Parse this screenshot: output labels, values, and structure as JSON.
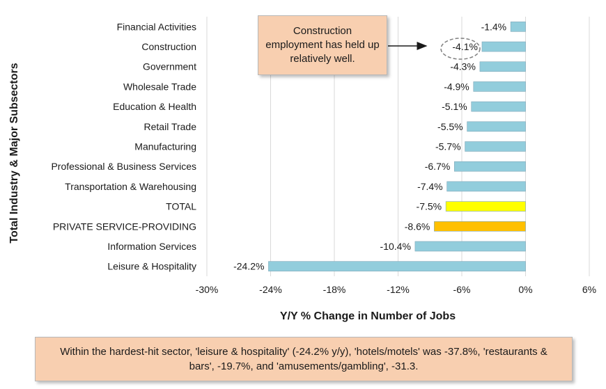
{
  "chart_data": {
    "type": "bar",
    "orientation": "horizontal",
    "categories": [
      "Financial Activities",
      "Construction",
      "Government",
      "Wholesale Trade",
      "Education & Health",
      "Retail Trade",
      "Manufacturing",
      "Professional & Business Services",
      "Transportation & Warehousing",
      "TOTAL",
      "PRIVATE SERVICE-PROVIDING",
      "Information Services",
      "Leisure & Hospitality"
    ],
    "values": [
      -1.4,
      -4.1,
      -4.3,
      -4.9,
      -5.1,
      -5.5,
      -5.7,
      -6.7,
      -7.4,
      -7.5,
      -8.6,
      -10.4,
      -24.2
    ],
    "value_labels": [
      "-1.4%",
      "-4.1%",
      "-4.3%",
      "-4.9%",
      "-5.1%",
      "-5.5%",
      "-5.7%",
      "-6.7%",
      "-7.4%",
      "-7.5%",
      "-8.6%",
      "-10.4%",
      "-24.2%"
    ],
    "bar_colors": [
      "#92cddc",
      "#92cddc",
      "#92cddc",
      "#92cddc",
      "#92cddc",
      "#92cddc",
      "#92cddc",
      "#92cddc",
      "#92cddc",
      "#ffff00",
      "#ffc000",
      "#92cddc",
      "#92cddc"
    ],
    "xticks": [
      -30,
      -24,
      -18,
      -12,
      -6,
      0,
      6
    ],
    "xtick_labels": [
      "-30%",
      "-24%",
      "-18%",
      "-12%",
      "-6%",
      "0%",
      "6%"
    ],
    "xlim": [
      -30,
      6
    ],
    "xlabel": "Y/Y % Change in Number of Jobs",
    "ylabel": "Total Industry & Major Subsectors",
    "grid": "vertical",
    "highlighted_category": "Construction",
    "annotation": "Construction employment has held up relatively well."
  },
  "footnote": "Within the hardest-hit sector, 'leisure & hospitality' (-24.2% y/y), 'hotels/motels' was -37.8%, 'restaurants & bars', -19.7%, and 'amusements/gambling', -31.3."
}
